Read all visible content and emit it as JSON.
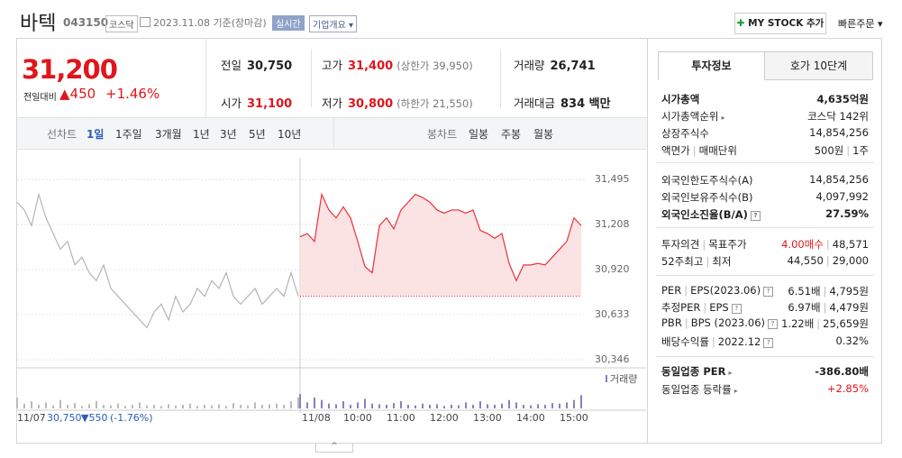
{
  "header": {
    "name": "바텍",
    "code": "043150",
    "market": "코스닥",
    "date": "2023.11.08 기준(장마감)",
    "realtime": "실시간",
    "company_info": "기업개요",
    "my_stock": "MY STOCK 추가",
    "quick_order": "빠른주문"
  },
  "price": {
    "current": "31,200",
    "change_label": "전일대비",
    "change": "450",
    "change_pct": "+1.46%"
  },
  "quote": [
    {
      "label": "전일",
      "value": "30,750"
    },
    {
      "label": "고가",
      "value": "31,400",
      "note": "(상한가 39,950)"
    },
    {
      "label": "거래량",
      "value": "26,741"
    },
    {
      "label": "시가",
      "value": "31,100"
    },
    {
      "label": "저가",
      "value": "30,800",
      "note": "(하한가 21,550)"
    },
    {
      "label": "거래대금",
      "value": "834 백만"
    }
  ],
  "tabs": {
    "line_label": "선차트",
    "line": [
      "1일",
      "1주일",
      "3개월",
      "1년",
      "3년",
      "5년",
      "10년"
    ],
    "candle_label": "봉차트",
    "candle": [
      "일봉",
      "주봉",
      "월봉"
    ]
  },
  "chart_data": {
    "type": "line",
    "ylim": [
      30346,
      31495
    ],
    "yticks": [
      {
        "value": 31495,
        "label": "31,495"
      },
      {
        "value": 31208,
        "label": "31,208"
      },
      {
        "value": 30920,
        "label": "30,920"
      },
      {
        "value": 30633,
        "label": "30,633"
      },
      {
        "value": 30346,
        "label": "30,346"
      }
    ],
    "grid": true,
    "reference": 30750,
    "prev_day": {
      "date": "11/07",
      "close": "30,750",
      "change": "550",
      "change_pct": "(-1.76%)"
    },
    "day_label": "11/08",
    "time_labels": [
      "10:00",
      "11:00",
      "12:00",
      "13:00",
      "14:00",
      "15:00"
    ],
    "volume_label": "거래량",
    "series": [
      {
        "name": "11/07",
        "color": "#b4b4b4",
        "x": [
          "09:00",
          "09:10",
          "09:20",
          "09:30",
          "09:40",
          "09:50",
          "10:00",
          "10:10",
          "10:20",
          "10:30",
          "10:40",
          "10:50",
          "11:00",
          "11:10",
          "11:20",
          "11:30",
          "11:40",
          "11:50",
          "12:00",
          "12:10",
          "12:20",
          "12:30",
          "12:40",
          "12:50",
          "13:00",
          "13:10",
          "13:20",
          "13:30",
          "13:40",
          "13:50",
          "14:00",
          "14:10",
          "14:20",
          "14:30",
          "14:40",
          "14:50",
          "15:00",
          "15:10",
          "15:20",
          "15:30"
        ],
        "values": [
          31350,
          31300,
          31200,
          31400,
          31250,
          31150,
          31050,
          31100,
          30950,
          31000,
          30900,
          30850,
          30950,
          30800,
          30750,
          30700,
          30650,
          30600,
          30550,
          30650,
          30700,
          30600,
          30750,
          30650,
          30700,
          30800,
          30750,
          30850,
          30800,
          30900,
          30750,
          30700,
          30750,
          30800,
          30700,
          30750,
          30800,
          30750,
          30900,
          30750
        ],
        "volume": [
          900,
          400,
          600,
          300,
          500,
          250,
          700,
          300,
          450,
          200,
          350,
          600,
          300,
          250,
          400,
          200,
          300,
          500,
          250,
          300,
          200,
          350,
          250,
          300,
          400,
          200,
          300,
          250,
          350,
          200,
          450,
          300,
          250,
          500,
          300,
          350,
          400,
          300,
          600,
          900
        ]
      },
      {
        "name": "11/08",
        "color": "#e8323a",
        "x": [
          "09:00",
          "09:10",
          "09:20",
          "09:30",
          "09:40",
          "09:50",
          "10:00",
          "10:10",
          "10:20",
          "10:30",
          "10:40",
          "10:50",
          "11:00",
          "11:10",
          "11:20",
          "11:30",
          "11:40",
          "11:50",
          "12:00",
          "12:10",
          "12:20",
          "12:30",
          "12:40",
          "12:50",
          "13:00",
          "13:10",
          "13:20",
          "13:30",
          "13:40",
          "13:50",
          "14:00",
          "14:10",
          "14:20",
          "14:30",
          "14:40",
          "14:50",
          "15:00",
          "15:10",
          "15:20",
          "15:30"
        ],
        "values": [
          31130,
          31150,
          31100,
          31400,
          31300,
          31250,
          31320,
          31250,
          31100,
          30940,
          30900,
          31200,
          31250,
          31180,
          31300,
          31350,
          31400,
          31380,
          31350,
          31300,
          31280,
          31300,
          31300,
          31280,
          31300,
          31170,
          31150,
          31120,
          31150,
          30960,
          30850,
          30950,
          30950,
          30960,
          30950,
          31000,
          31050,
          31100,
          31250,
          31200
        ],
        "volume": [
          1200,
          500,
          900,
          700,
          400,
          350,
          600,
          300,
          500,
          800,
          400,
          350,
          300,
          450,
          600,
          300,
          250,
          400,
          300,
          350,
          200,
          300,
          250,
          500,
          300,
          600,
          350,
          300,
          400,
          700,
          500,
          300,
          250,
          350,
          300,
          450,
          400,
          500,
          700,
          1100
        ]
      }
    ],
    "volume_ylim": [
      0,
      3000
    ]
  },
  "info": {
    "tabs": [
      "투자정보",
      "호가 10단계"
    ],
    "rows": [
      {
        "label": "시가총액",
        "value": "4,635억원"
      },
      {
        "label": "시가총액순위",
        "value": "코스닥 142위"
      },
      {
        "label": "상장주식수",
        "value": "14,854,256"
      },
      {
        "label": "액면가",
        "label2": "매매단위",
        "value": "500원",
        "value2": "1주"
      },
      {
        "label": "외국인한도주식수(A)",
        "value": "14,854,256"
      },
      {
        "label": "외국인보유주식수(B)",
        "value": "4,097,992"
      },
      {
        "label": "외국인소진율(B/A)",
        "value": "27.59%"
      },
      {
        "label": "투자의견",
        "label2": "목표주가",
        "value": "4.00매수",
        "value2": "48,571"
      },
      {
        "label": "52주최고",
        "label2": "최저",
        "value": "44,550",
        "value2": "29,000"
      },
      {
        "label": "PER",
        "label2": "EPS(2023.06)",
        "value": "6.51배",
        "value2": "4,795원"
      },
      {
        "label": "추정PER",
        "label2": "EPS",
        "value": "6.97배",
        "value2": "4,479원"
      },
      {
        "label": "PBR",
        "label2": "BPS (2023.06)",
        "value": "1.22배",
        "value2": "25,659원"
      },
      {
        "label": "배당수익률",
        "label2": "2022.12",
        "value": "0.32%"
      },
      {
        "label": "동일업종 PER",
        "value": "-386.80배"
      },
      {
        "label": "동일업종 등락률",
        "value": "+2.85%"
      }
    ]
  }
}
